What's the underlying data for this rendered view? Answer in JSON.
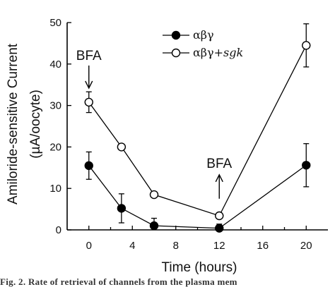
{
  "chart_data": {
    "type": "line",
    "xlabel": "Time (hours)",
    "ylabel_line1": "Amiloride-sensitive  Current",
    "ylabel_line2": "(µA/oocyte)",
    "xlim": [
      -2,
      22
    ],
    "ylim": [
      0,
      50
    ],
    "xticks": [
      0,
      4,
      8,
      12,
      16,
      20
    ],
    "yticks": [
      0,
      10,
      20,
      30,
      40,
      50
    ],
    "grid": false,
    "legend_position": "top-center",
    "series": [
      {
        "name": "αβγ",
        "marker": "filled-circle",
        "x": [
          0,
          3,
          6,
          12,
          20
        ],
        "y": [
          15.5,
          5.2,
          1.0,
          0.4,
          15.6
        ],
        "err": [
          3.3,
          3.5,
          1.8,
          1.0,
          5.2
        ]
      },
      {
        "name": "αβγ+",
        "name_italic": "sgk",
        "marker": "open-circle",
        "x": [
          0,
          3,
          6,
          12,
          20
        ],
        "y": [
          30.8,
          20.0,
          8.5,
          3.4,
          44.5
        ],
        "err": [
          2.5,
          0.6,
          0.5,
          0.6,
          5.2
        ]
      }
    ],
    "annotations": [
      {
        "text": "BFA",
        "x": 0,
        "y": 41,
        "arrow": "down"
      },
      {
        "text": "BFA",
        "x": 12,
        "y": 15,
        "arrow": "up"
      }
    ]
  },
  "caption": "Fig. 2. Rate of retrieval of channels from the plasma mem"
}
